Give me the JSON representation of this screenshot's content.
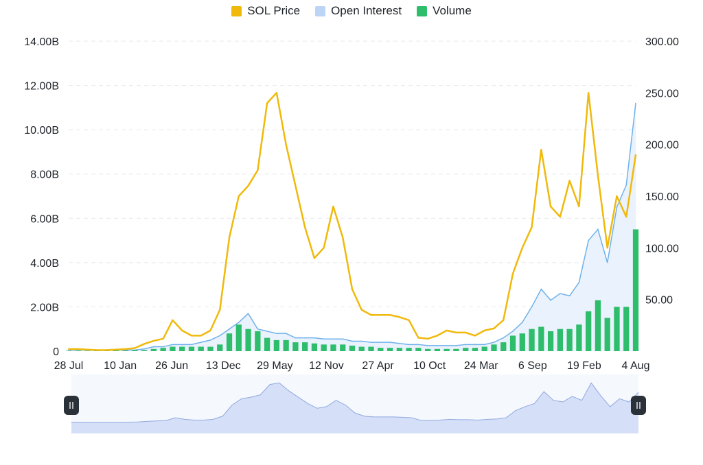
{
  "legend": [
    {
      "label": "SOL Price",
      "color": "#f0b90b"
    },
    {
      "label": "Open Interest",
      "color": "#bcd4f6"
    },
    {
      "label": "Volume",
      "color": "#2ebd6b"
    }
  ],
  "chart_data": {
    "type": "line",
    "title": "",
    "x_labels": [
      "28 Jul",
      "10 Jan",
      "26 Jun",
      "13 Dec",
      "29 May",
      "12 Nov",
      "27 Apr",
      "10 Oct",
      "24 Mar",
      "6 Sep",
      "19 Feb",
      "4 Aug"
    ],
    "y_left": {
      "ticks": [
        "0",
        "2.00B",
        "4.00B",
        "6.00B",
        "8.00B",
        "10.00B",
        "12.00B",
        "14.00B"
      ],
      "range": [
        0,
        14000000000
      ]
    },
    "y_right": {
      "ticks": [
        "50.00",
        "100.00",
        "150.00",
        "200.00",
        "250.00",
        "300.00"
      ],
      "range": [
        0,
        300
      ]
    },
    "grid": true,
    "legend_position": "top-center",
    "n_points": 61,
    "series": [
      {
        "name": "SOL Price",
        "axis": "right",
        "color": "#f0b90b",
        "values": [
          2,
          2,
          1.5,
          1,
          1,
          1.5,
          2,
          3,
          7,
          10,
          12,
          30,
          20,
          15,
          15,
          20,
          40,
          110,
          150,
          160,
          175,
          240,
          250,
          200,
          160,
          120,
          90,
          100,
          140,
          110,
          60,
          40,
          35,
          35,
          35,
          33,
          30,
          13,
          12,
          15,
          20,
          18,
          18,
          15,
          20,
          22,
          30,
          75,
          100,
          120,
          195,
          140,
          130,
          165,
          140,
          250,
          170,
          100,
          150,
          130,
          190
        ]
      },
      {
        "name": "Open Interest",
        "axis": "left",
        "color": "#6fb1ea",
        "values": [
          0.05,
          0.05,
          0.05,
          0.05,
          0.05,
          0.05,
          0.05,
          0.05,
          0.1,
          0.2,
          0.2,
          0.3,
          0.3,
          0.3,
          0.4,
          0.5,
          0.7,
          1.0,
          1.3,
          1.7,
          1.0,
          0.9,
          0.8,
          0.8,
          0.6,
          0.6,
          0.6,
          0.55,
          0.55,
          0.55,
          0.45,
          0.45,
          0.4,
          0.4,
          0.4,
          0.35,
          0.3,
          0.3,
          0.25,
          0.25,
          0.25,
          0.25,
          0.3,
          0.3,
          0.3,
          0.4,
          0.6,
          0.9,
          1.3,
          2.0,
          2.8,
          2.3,
          2.6,
          2.5,
          3.1,
          5.0,
          5.5,
          4.0,
          6.5,
          7.5,
          11.2
        ]
      },
      {
        "name": "Volume",
        "axis": "left",
        "color": "#2ebd6b",
        "values": [
          0.02,
          0.02,
          0.02,
          0.02,
          0.02,
          0.03,
          0.03,
          0.05,
          0.05,
          0.1,
          0.15,
          0.2,
          0.2,
          0.2,
          0.2,
          0.2,
          0.3,
          0.8,
          1.2,
          1.0,
          0.9,
          0.6,
          0.5,
          0.5,
          0.4,
          0.4,
          0.35,
          0.3,
          0.3,
          0.3,
          0.25,
          0.2,
          0.2,
          0.15,
          0.15,
          0.15,
          0.15,
          0.15,
          0.1,
          0.1,
          0.1,
          0.1,
          0.15,
          0.15,
          0.2,
          0.3,
          0.4,
          0.7,
          0.8,
          1.0,
          1.1,
          0.9,
          1.0,
          1.0,
          1.2,
          1.8,
          2.3,
          1.5,
          2.0,
          2.0,
          5.5
        ]
      }
    ]
  }
}
